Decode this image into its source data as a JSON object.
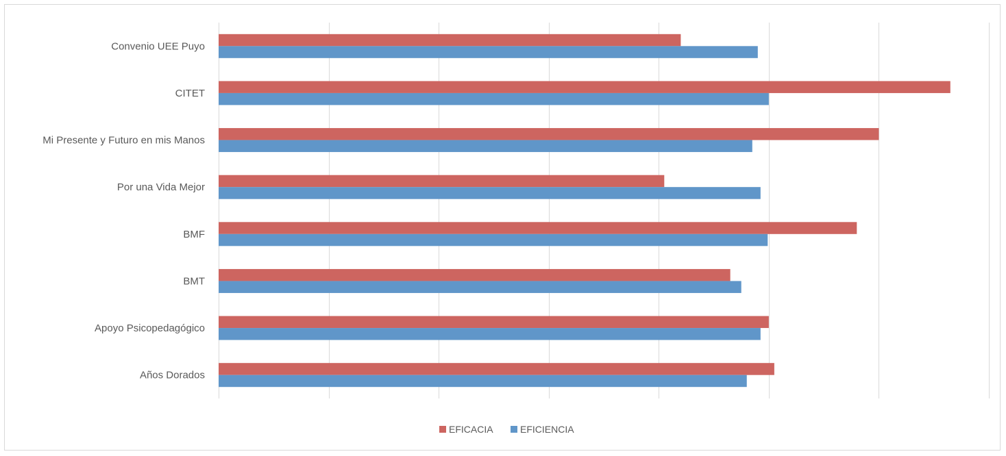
{
  "chart_data": {
    "type": "bar",
    "orientation": "horizontal",
    "categories": [
      "Convenio UEE Puyo",
      "CITET",
      "Mi Presente y Futuro en mis Manos",
      "Por una Vida Mejor",
      "BMF",
      "BMT",
      "Apoyo Psicopedagógico",
      "Años Dorados"
    ],
    "series": [
      {
        "name": "EFICACIA",
        "color": "#cd6560",
        "values": [
          0.84,
          1.33,
          1.2,
          0.81,
          1.16,
          0.93,
          1.0,
          1.01
        ]
      },
      {
        "name": "EFICIENCIA",
        "color": "#6096c9",
        "values": [
          0.98,
          1.0,
          0.97,
          0.985,
          0.998,
          0.95,
          0.985,
          0.96
        ]
      }
    ],
    "xlim": [
      0,
      1.4
    ],
    "x_ticks_labeled": false,
    "grid": true,
    "legend_position": "bottom"
  }
}
